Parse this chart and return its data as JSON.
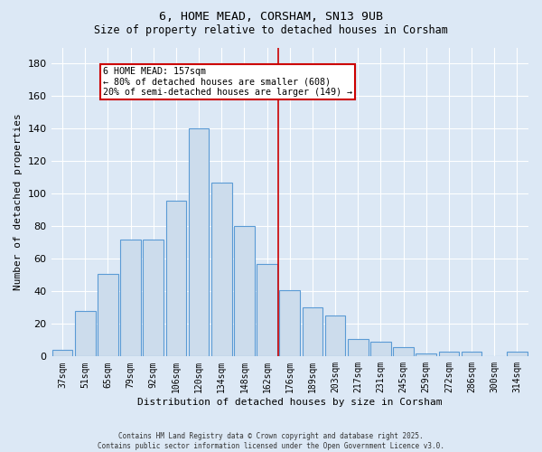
{
  "title1": "6, HOME MEAD, CORSHAM, SN13 9UB",
  "title2": "Size of property relative to detached houses in Corsham",
  "xlabel": "Distribution of detached houses by size in Corsham",
  "ylabel": "Number of detached properties",
  "categories": [
    "37sqm",
    "51sqm",
    "65sqm",
    "79sqm",
    "92sqm",
    "106sqm",
    "120sqm",
    "134sqm",
    "148sqm",
    "162sqm",
    "176sqm",
    "189sqm",
    "203sqm",
    "217sqm",
    "231sqm",
    "245sqm",
    "259sqm",
    "272sqm",
    "286sqm",
    "300sqm",
    "314sqm"
  ],
  "values": [
    4,
    28,
    51,
    72,
    72,
    96,
    140,
    107,
    80,
    57,
    41,
    30,
    25,
    11,
    9,
    6,
    2,
    3,
    3,
    0,
    3
  ],
  "bar_color": "#ccdcec",
  "bar_edge_color": "#5b9bd5",
  "background_color": "#dce8f5",
  "grid_color": "#ffffff",
  "annotation_text": "6 HOME MEAD: 157sqm\n← 80% of detached houses are smaller (608)\n20% of semi-detached houses are larger (149) →",
  "annotation_box_color": "#ffffff",
  "annotation_box_edge": "#cc0000",
  "vline_color": "#cc0000",
  "vline_pos": 9.5,
  "ylim": [
    0,
    190
  ],
  "yticks": [
    0,
    20,
    40,
    60,
    80,
    100,
    120,
    140,
    160,
    180
  ],
  "footer1": "Contains HM Land Registry data © Crown copyright and database right 2025.",
  "footer2": "Contains public sector information licensed under the Open Government Licence v3.0."
}
